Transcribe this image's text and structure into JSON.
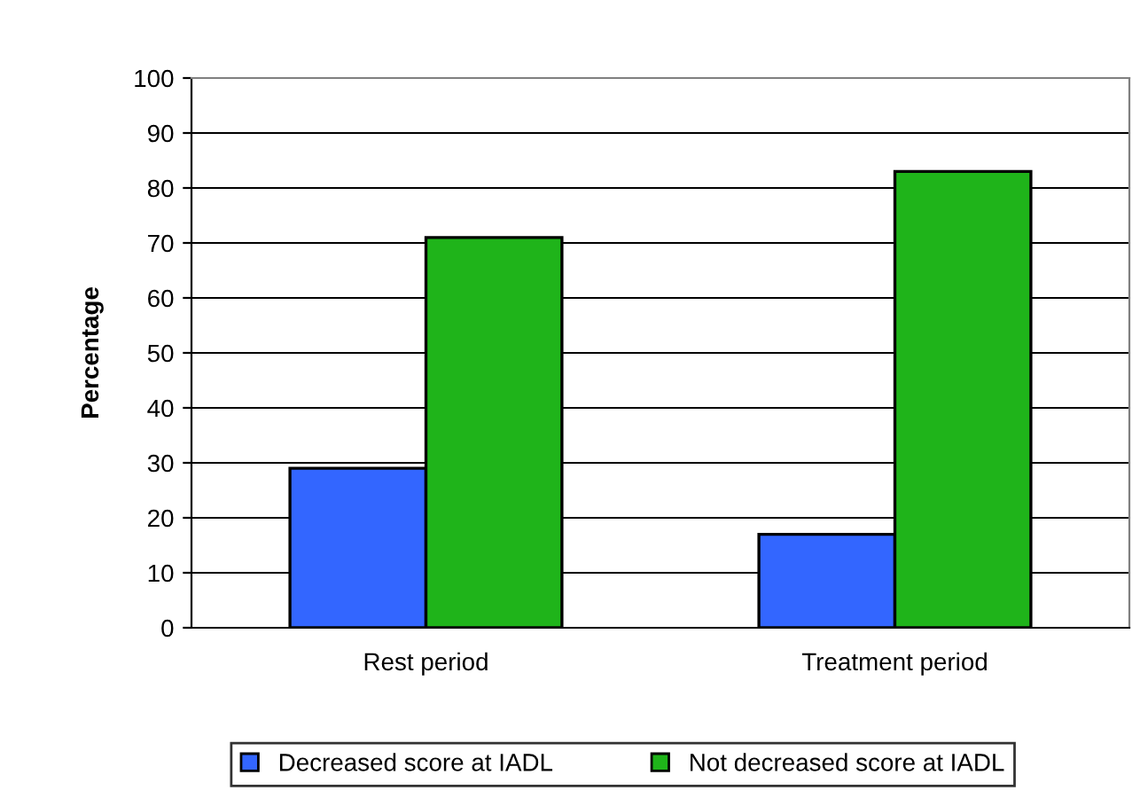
{
  "chart_data": {
    "type": "bar",
    "ylabel": "Percentage",
    "categories": [
      "Rest period",
      "Treatment period"
    ],
    "series": [
      {
        "name": "Decreased score at IADL",
        "color": "#3366ff",
        "values": [
          29,
          17
        ]
      },
      {
        "name": "Not decreased score at IADL",
        "color": "#1fb41a",
        "values": [
          71,
          83
        ]
      }
    ],
    "ylim": [
      0,
      100
    ],
    "yticks": [
      0,
      10,
      20,
      30,
      40,
      50,
      60,
      70,
      80,
      90,
      100
    ],
    "grid": "y",
    "legend": "bottom"
  }
}
